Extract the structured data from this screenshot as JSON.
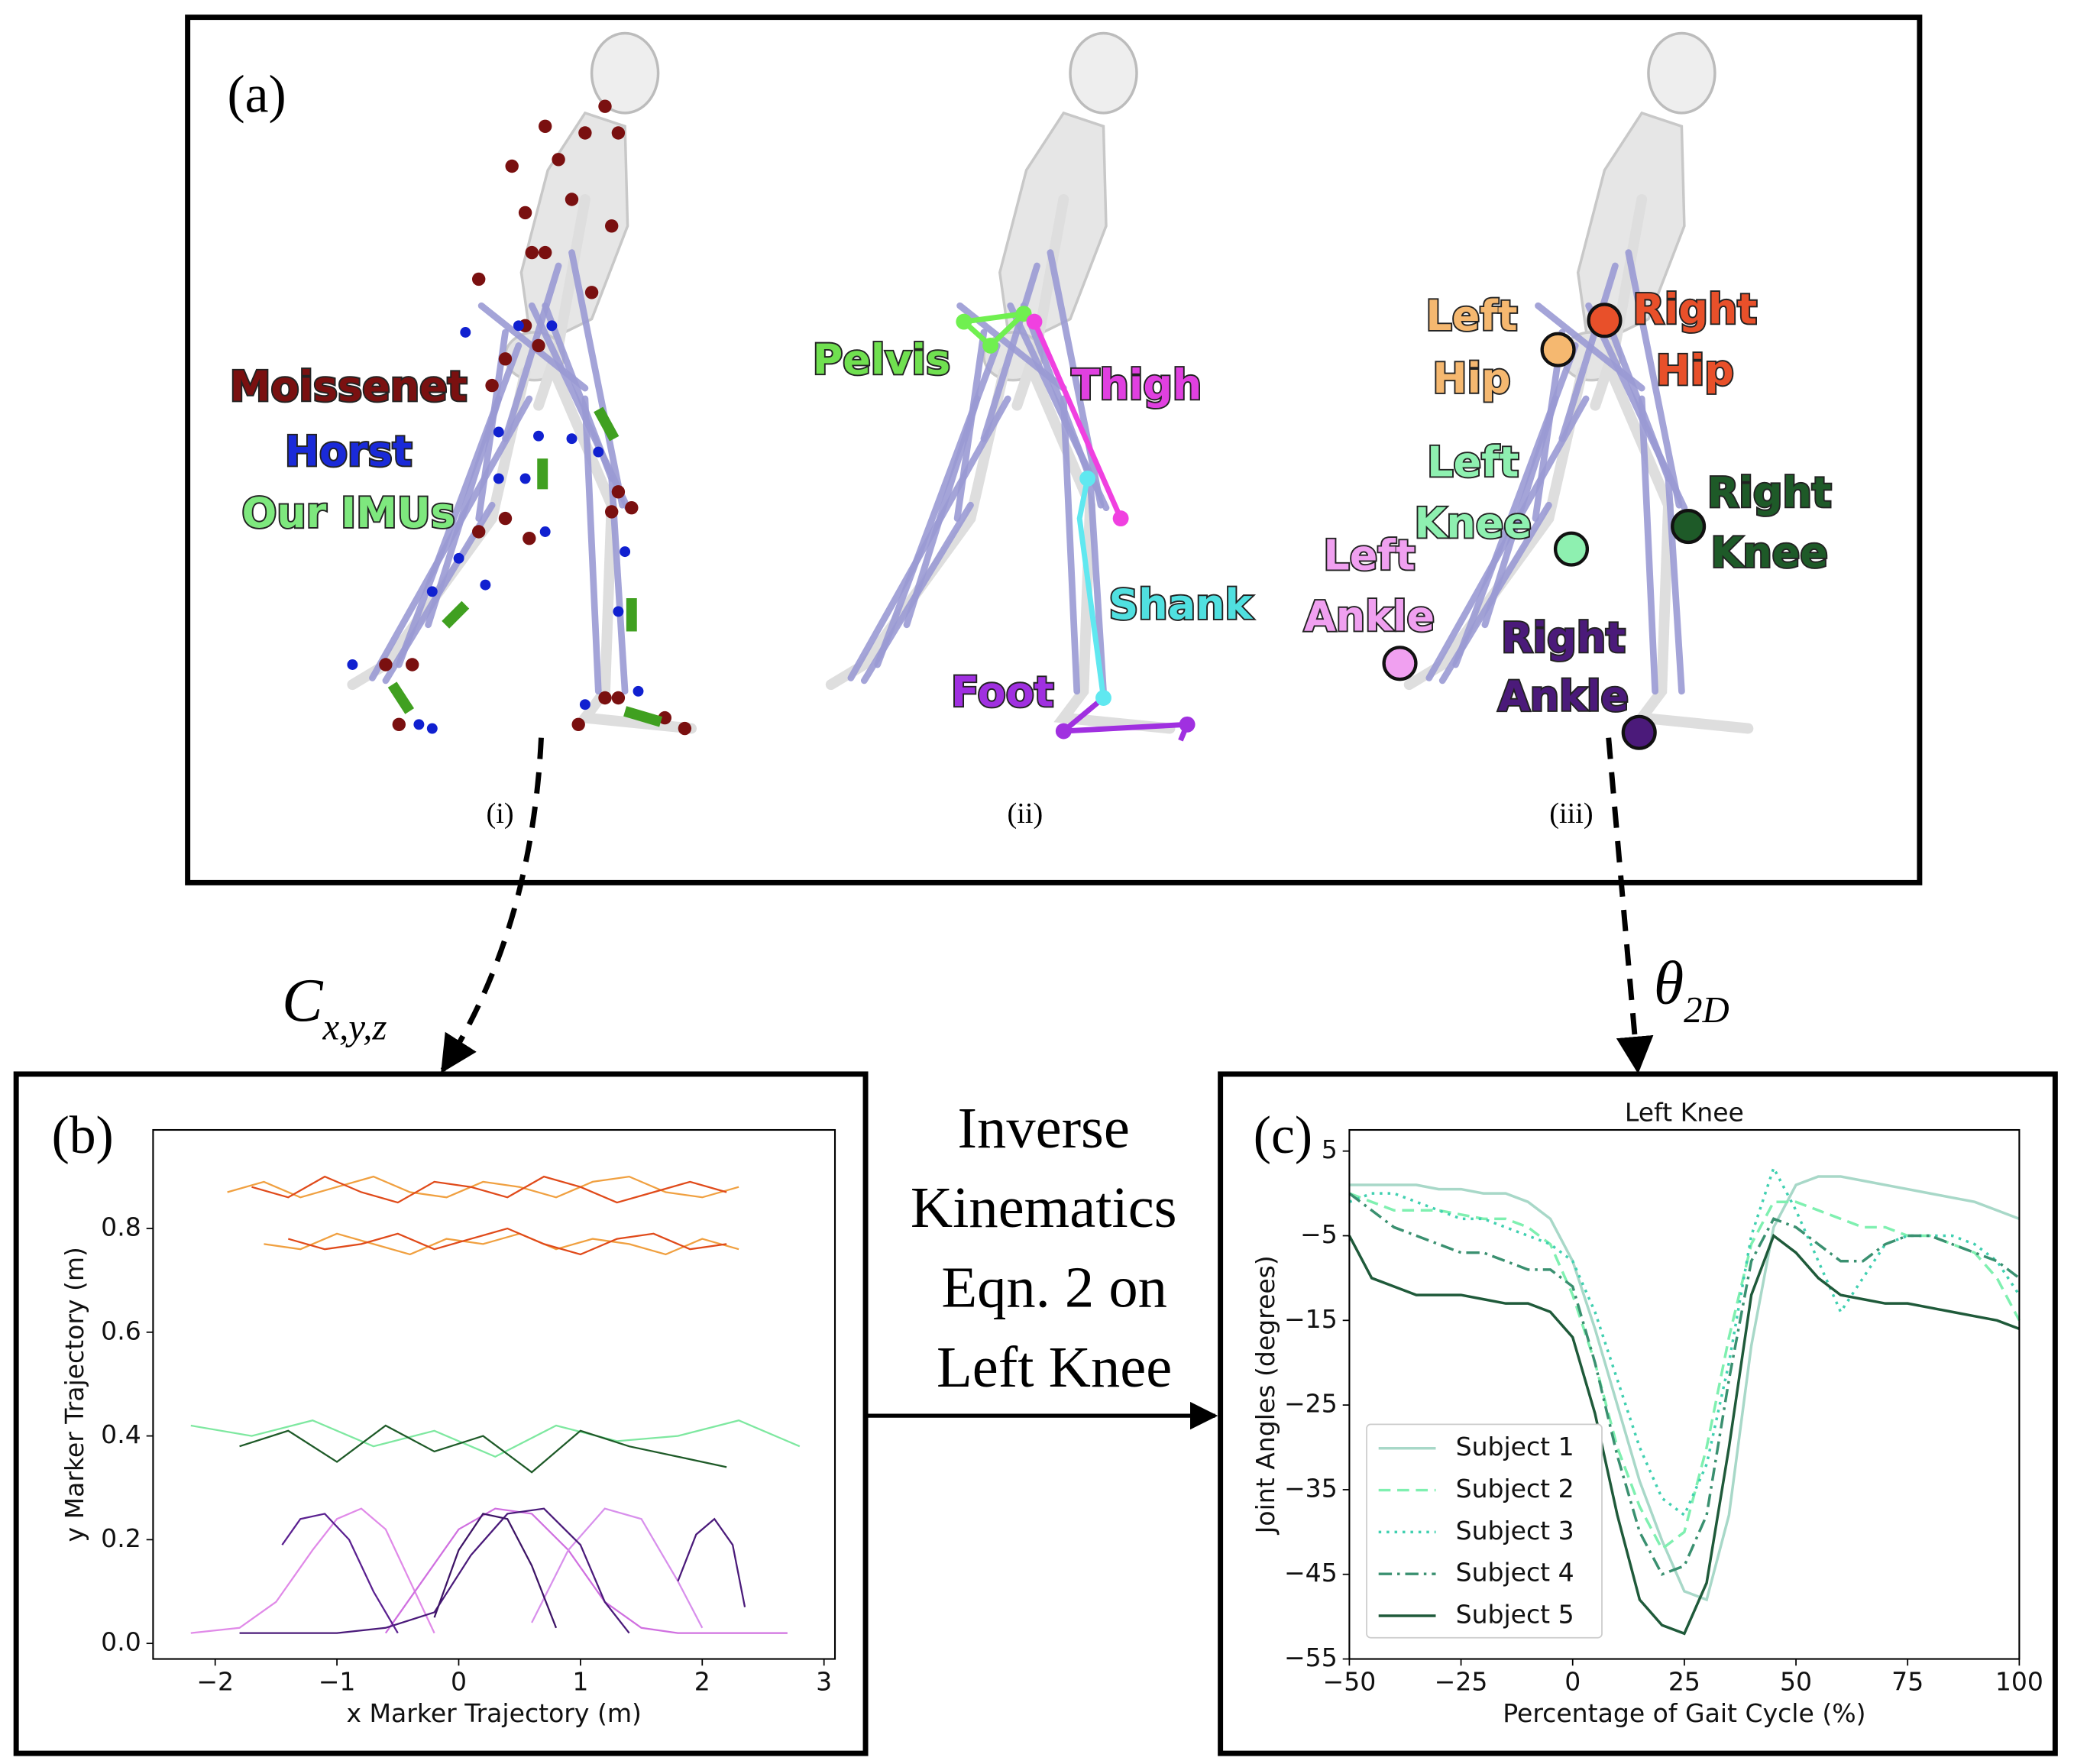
{
  "panel_labels": [
    "(a)",
    "(b)",
    "(c)"
  ],
  "sub_labels": [
    "(i)",
    "(ii)",
    "(iii)"
  ],
  "marker_sets": [
    "Moissenet",
    "Horst",
    "Our IMUs"
  ],
  "segments": [
    "Pelvis",
    "Thigh",
    "Shank",
    "Foot"
  ],
  "joints": [
    [
      "Left",
      "Hip"
    ],
    [
      "Right",
      "Hip"
    ],
    [
      "Left",
      "Knee"
    ],
    [
      "Right",
      "Knee"
    ],
    [
      "Left",
      "Ankle"
    ],
    [
      "Right",
      "Ankle"
    ]
  ],
  "arrow_labels": [
    {
      "symbol": "C",
      "subscript": "x,y,z"
    },
    {
      "symbol": "θ",
      "subscript": "2D"
    }
  ],
  "process_text": [
    "Inverse",
    "Kinematics",
    "Eqn. 2 on",
    "Left Knee"
  ],
  "chart_data": [
    {
      "type": "line",
      "xlabel": "x Marker Trajectory (m)",
      "ylabel": "y Marker Trajectory (m)",
      "xlim": [
        -2.51,
        3.09
      ],
      "ylim": [
        -0.03,
        0.99
      ],
      "xticks": [
        {
          "value": -2,
          "label": "−2"
        },
        {
          "value": -1,
          "label": "−1"
        },
        0,
        1,
        2,
        3
      ],
      "yticks": [
        {
          "value": 0,
          "label": "0.0"
        },
        0.2,
        0.4,
        0.6,
        0.8
      ],
      "series": [
        {
          "color": "#f0a040",
          "x": [
            -1.9,
            -1.6,
            -1.3,
            -1.0,
            -0.7,
            -0.4,
            -0.1,
            0.2,
            0.5,
            0.8,
            1.1,
            1.4,
            1.7,
            2.0,
            2.3
          ],
          "values": [
            0.87,
            0.89,
            0.86,
            0.88,
            0.9,
            0.87,
            0.86,
            0.89,
            0.88,
            0.86,
            0.89,
            0.9,
            0.87,
            0.86,
            0.88
          ]
        },
        {
          "color": "#e04a1a",
          "x": [
            -1.7,
            -1.4,
            -1.1,
            -0.8,
            -0.5,
            -0.2,
            0.1,
            0.4,
            0.7,
            1.0,
            1.3,
            1.6,
            1.9,
            2.2
          ],
          "values": [
            0.88,
            0.86,
            0.9,
            0.87,
            0.85,
            0.89,
            0.88,
            0.86,
            0.9,
            0.88,
            0.85,
            0.87,
            0.89,
            0.87
          ]
        },
        {
          "color": "#f0a040",
          "x": [
            -1.6,
            -1.3,
            -1.0,
            -0.7,
            -0.4,
            -0.1,
            0.2,
            0.5,
            0.8,
            1.1,
            1.4,
            1.7,
            2.0,
            2.3
          ],
          "values": [
            0.77,
            0.76,
            0.79,
            0.77,
            0.75,
            0.78,
            0.77,
            0.79,
            0.76,
            0.78,
            0.77,
            0.75,
            0.78,
            0.76
          ]
        },
        {
          "color": "#e04a1a",
          "x": [
            -1.4,
            -1.1,
            -0.8,
            -0.5,
            -0.2,
            0.1,
            0.4,
            0.7,
            1.0,
            1.3,
            1.6,
            1.9,
            2.2
          ],
          "values": [
            0.78,
            0.76,
            0.77,
            0.79,
            0.76,
            0.78,
            0.8,
            0.77,
            0.75,
            0.78,
            0.79,
            0.76,
            0.77
          ]
        },
        {
          "color": "#7ee8a0",
          "x": [
            -2.2,
            -1.7,
            -1.2,
            -0.7,
            -0.2,
            0.3,
            0.8,
            1.3,
            1.8,
            2.3,
            2.8
          ],
          "values": [
            0.42,
            0.4,
            0.43,
            0.38,
            0.41,
            0.36,
            0.42,
            0.39,
            0.4,
            0.43,
            0.38
          ]
        },
        {
          "color": "#1e5a28",
          "x": [
            -1.8,
            -1.4,
            -1.0,
            -0.6,
            -0.2,
            0.2,
            0.6,
            1.0,
            1.4,
            1.8,
            2.2
          ],
          "values": [
            0.38,
            0.41,
            0.35,
            0.42,
            0.37,
            0.4,
            0.33,
            0.41,
            0.38,
            0.36,
            0.34
          ]
        },
        {
          "color": "#e08ae8",
          "x": [
            -2.2,
            -1.8,
            -1.5,
            -1.2,
            -1.0,
            -0.8,
            -0.6,
            -0.4,
            -0.2
          ],
          "values": [
            0.02,
            0.03,
            0.08,
            0.18,
            0.24,
            0.26,
            0.22,
            0.12,
            0.02
          ]
        },
        {
          "color": "#d070e0",
          "x": [
            -0.6,
            -0.3,
            0,
            0.3,
            0.6,
            0.9,
            1.2,
            1.5,
            1.8,
            2.2,
            2.7
          ],
          "values": [
            0.02,
            0.12,
            0.22,
            0.26,
            0.25,
            0.18,
            0.08,
            0.03,
            0.02,
            0.02,
            0.02
          ]
        },
        {
          "color": "#d890ec",
          "x": [
            0.6,
            0.9,
            1.2,
            1.5,
            1.8,
            2.0
          ],
          "values": [
            0.04,
            0.18,
            0.26,
            0.24,
            0.12,
            0.03
          ]
        },
        {
          "color": "#4a1a7a",
          "x": [
            -1.8,
            -1.4,
            -1.0,
            -0.6,
            -0.2,
            0.1,
            0.4,
            0.7,
            1.0,
            1.2,
            1.4
          ],
          "values": [
            0.02,
            0.02,
            0.02,
            0.03,
            0.06,
            0.17,
            0.25,
            0.26,
            0.19,
            0.08,
            0.02
          ]
        },
        {
          "color": "#5a2090",
          "x": [
            -1.45,
            -1.3,
            -1.1,
            -0.9,
            -0.7,
            -0.5
          ],
          "values": [
            0.19,
            0.24,
            0.25,
            0.2,
            0.1,
            0.02
          ]
        },
        {
          "color": "#4a1a7a",
          "x": [
            1.8,
            1.95,
            2.1,
            2.25,
            2.35
          ],
          "values": [
            0.12,
            0.21,
            0.24,
            0.19,
            0.07
          ]
        },
        {
          "color": "#3d1466",
          "x": [
            -0.2,
            0,
            0.2,
            0.4,
            0.6,
            0.8
          ],
          "values": [
            0.05,
            0.18,
            0.25,
            0.24,
            0.15,
            0.03
          ]
        }
      ]
    },
    {
      "type": "line",
      "title": "Left Knee",
      "xlabel": "Percentage of Gait Cycle (%)",
      "ylabel": "Joint Angles (degrees)",
      "xlim": [
        -50,
        100
      ],
      "ylim": [
        -55,
        7.5
      ],
      "xticks": [
        {
          "value": -50,
          "label": "−50"
        },
        {
          "value": -25,
          "label": "−25"
        },
        0,
        25,
        50,
        75,
        100
      ],
      "yticks": [
        5,
        {
          "value": -5,
          "label": "−5"
        },
        {
          "value": -15,
          "label": "−15"
        },
        {
          "value": -25,
          "label": "−25"
        },
        {
          "value": -35,
          "label": "−35"
        },
        {
          "value": -45,
          "label": "−45"
        },
        {
          "value": -55,
          "label": "−55"
        }
      ],
      "legend": "lower left",
      "x": [
        -50,
        -45,
        -40,
        -35,
        -30,
        -25,
        -20,
        -15,
        -10,
        -5,
        0,
        5,
        10,
        15,
        20,
        25,
        30,
        35,
        40,
        45,
        50,
        55,
        60,
        65,
        70,
        75,
        80,
        85,
        90,
        95,
        100
      ],
      "series": [
        {
          "name": "Subject 1",
          "color": "#a8d8c8",
          "linestyle": "solid",
          "values": [
            1,
            1,
            1,
            1,
            0.5,
            0.5,
            0,
            0,
            -1,
            -3,
            -8,
            -16,
            -25,
            -34,
            -41,
            -47,
            -48,
            -38,
            -18,
            -4,
            1,
            2,
            2,
            1.5,
            1,
            0.5,
            0,
            -0.5,
            -1,
            -2,
            -3
          ]
        },
        {
          "name": "Subject 2",
          "color": "#7ff0b0",
          "linestyle": "dashed",
          "values": [
            0,
            -1,
            -2,
            -2,
            -2,
            -2.5,
            -3,
            -3,
            -4,
            -6,
            -12,
            -20,
            -30,
            -37,
            -42,
            -40,
            -30,
            -17,
            -6,
            -1,
            -1,
            -2,
            -3,
            -4,
            -4,
            -5,
            -5,
            -6,
            -7,
            -10,
            -15
          ]
        },
        {
          "name": "Subject 3",
          "color": "#40d0b0",
          "linestyle": "dotted",
          "values": [
            -1,
            0,
            0,
            -1,
            -2,
            -3,
            -3,
            -4,
            -5,
            -6,
            -8,
            -14,
            -22,
            -30,
            -36,
            -38,
            -32,
            -20,
            -5,
            3,
            -2,
            -8,
            -14,
            -10,
            -6,
            -5,
            -5,
            -5,
            -6,
            -8,
            -12
          ]
        },
        {
          "name": "Subject 4",
          "color": "#3a9070",
          "linestyle": "dashdot",
          "values": [
            0,
            -2,
            -4,
            -5,
            -6,
            -7,
            -7,
            -8,
            -9,
            -9,
            -11,
            -20,
            -31,
            -40,
            -45,
            -44,
            -38,
            -22,
            -8,
            -3,
            -4,
            -6,
            -8,
            -8,
            -6,
            -5,
            -5,
            -6,
            -7,
            -8,
            -10
          ]
        },
        {
          "name": "Subject 5",
          "color": "#1f5a3a",
          "linestyle": "solid",
          "values": [
            -5,
            -10,
            -11,
            -12,
            -12,
            -12,
            -12.5,
            -13,
            -13,
            -14,
            -17,
            -26,
            -38,
            -48,
            -51,
            -52,
            -46,
            -30,
            -12,
            -5,
            -7,
            -10,
            -12,
            -12.5,
            -13,
            -13,
            -13.5,
            -14,
            -14.5,
            -15,
            -16
          ]
        }
      ]
    }
  ]
}
